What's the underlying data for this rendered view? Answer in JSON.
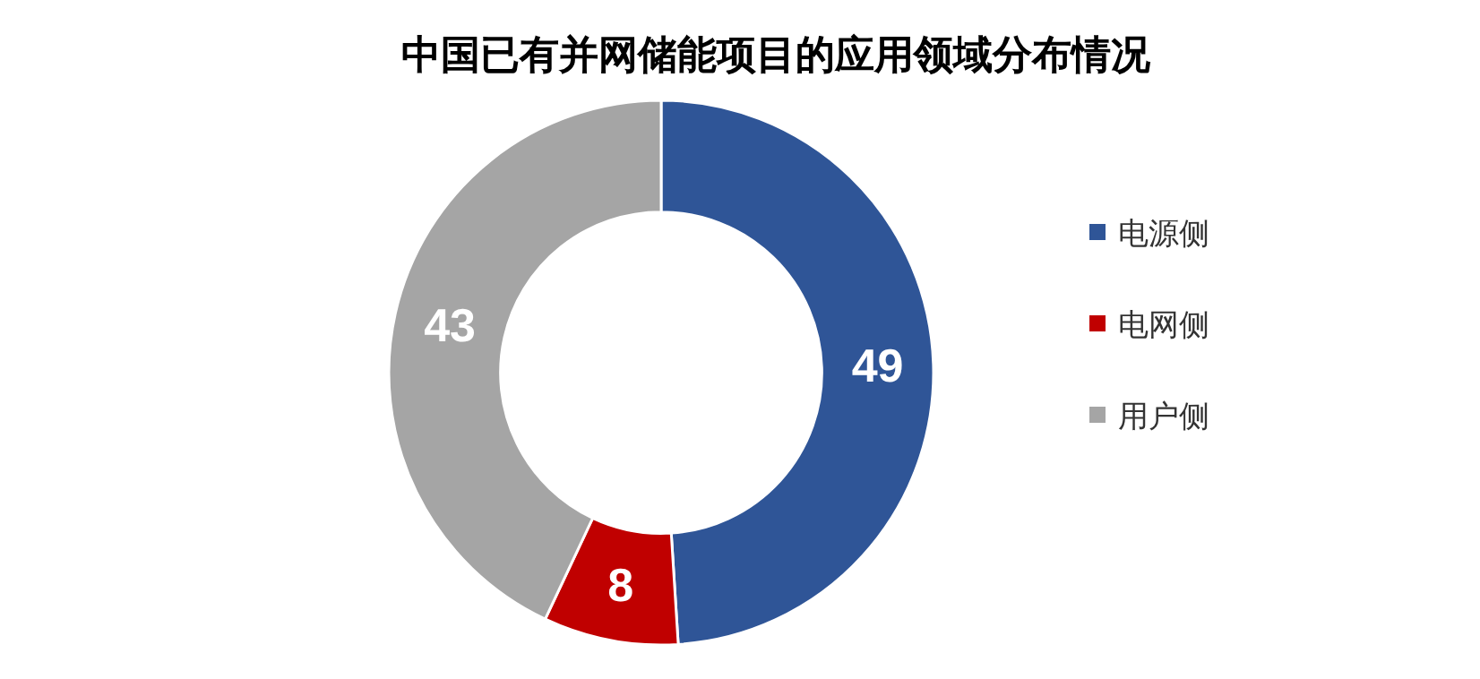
{
  "chart_data": {
    "type": "donut",
    "title": "中国已有并网储能项目的应用领域分布情况",
    "categories": [
      "电源侧",
      "电网侧",
      "用户侧"
    ],
    "values": [
      49,
      8,
      43
    ],
    "colors": [
      "#2f5597",
      "#c00000",
      "#a5a5a5"
    ],
    "data_labels": true,
    "legend": "right"
  }
}
